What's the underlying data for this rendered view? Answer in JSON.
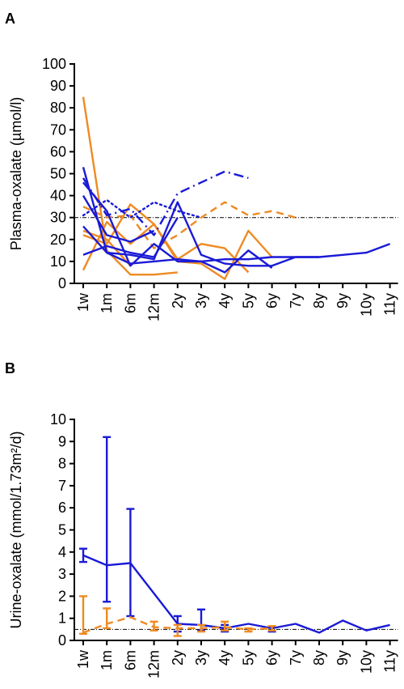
{
  "chart_data": [
    {
      "panel": "A",
      "type": "line",
      "ylabel": "Plasma-oxalate (µmol/l)",
      "xlabel": "",
      "categories": [
        "1w",
        "1m",
        "6m",
        "12m",
        "2y",
        "3y",
        "4y",
        "5y",
        "6y",
        "7y",
        "8y",
        "9y",
        "10y",
        "11y"
      ],
      "ylim": [
        0,
        100
      ],
      "yticks": [
        0,
        10,
        20,
        30,
        40,
        50,
        60,
        70,
        80,
        90,
        100
      ],
      "reference_line": 30,
      "colors": {
        "blue": "#1a1ad6",
        "orange": "#ee8a22"
      },
      "series": [
        {
          "color": "orange",
          "style": "solid",
          "x": [
            "1w",
            "1m",
            "6m",
            "12m",
            "2y"
          ],
          "y": [
            85,
            15,
            4,
            4,
            5
          ]
        },
        {
          "color": "orange",
          "style": "solid",
          "x": [
            "1w",
            "1m",
            "6m",
            "12m",
            "2y",
            "3y",
            "4y",
            "5y"
          ],
          "y": [
            22,
            18,
            36,
            27,
            11,
            18,
            16,
            5
          ]
        },
        {
          "color": "orange",
          "style": "solid",
          "x": [
            "1w",
            "1m",
            "6m",
            "12m",
            "2y",
            "3y",
            "4y",
            "5y",
            "6y"
          ],
          "y": [
            6,
            28,
            18,
            27,
            10,
            9,
            2,
            24,
            12
          ]
        },
        {
          "color": "orange",
          "style": "solid",
          "x": [
            "1w",
            "1m",
            "6m"
          ],
          "y": [
            24,
            20,
            8
          ]
        },
        {
          "color": "orange",
          "style": "dashed",
          "x": [
            "1w",
            "1m",
            "6m",
            "12m",
            "2y",
            "3y",
            "4y",
            "5y",
            "6y",
            "7y"
          ],
          "y": [
            35,
            30,
            31,
            16,
            22,
            30,
            37,
            31,
            33,
            30
          ]
        },
        {
          "color": "blue",
          "style": "solid",
          "x": [
            "1w",
            "1m",
            "6m",
            "12m",
            "2y",
            "3y",
            "4y",
            "5y",
            "6y"
          ],
          "y": [
            53,
            14,
            9,
            10,
            11,
            10,
            5,
            15,
            7
          ]
        },
        {
          "color": "blue",
          "style": "solid",
          "x": [
            "1w",
            "1m",
            "6m",
            "12m",
            "2y",
            "3y",
            "4y",
            "5y",
            "6y",
            "7y",
            "8y",
            "9y",
            "10y",
            "11y"
          ],
          "y": [
            46,
            33,
            8,
            18,
            10,
            10,
            11,
            11,
            12,
            12,
            12,
            13,
            14,
            18
          ]
        },
        {
          "color": "blue",
          "style": "solid",
          "x": [
            "1w",
            "1m",
            "6m",
            "12m",
            "2y",
            "3y",
            "4y",
            "5y",
            "6y",
            "7y",
            "8y"
          ],
          "y": [
            26,
            14,
            13,
            11,
            37,
            13,
            9,
            8,
            8,
            12,
            12
          ]
        },
        {
          "color": "blue",
          "style": "solid",
          "x": [
            "1w",
            "1m",
            "6m",
            "12m",
            "2y"
          ],
          "y": [
            13,
            17,
            14,
            12,
            30
          ]
        },
        {
          "color": "blue",
          "style": "solid",
          "x": [
            "1w",
            "1m",
            "6m",
            "12m"
          ],
          "y": [
            40,
            22,
            19,
            24
          ]
        },
        {
          "color": "blue",
          "style": "dotted",
          "x": [
            "1w",
            "1m",
            "6m",
            "12m",
            "2y",
            "3y"
          ],
          "y": [
            31,
            38,
            30,
            37,
            33,
            30
          ]
        },
        {
          "color": "blue",
          "style": "dashdot",
          "x": [
            "1w",
            "1m",
            "6m",
            "12m",
            "2y",
            "3y",
            "4y",
            "5y"
          ],
          "y": [
            48,
            31,
            34,
            22,
            41,
            46,
            51,
            48
          ]
        }
      ]
    },
    {
      "panel": "B",
      "type": "line",
      "ylabel": "Urine-oxalate (mmol/1.73m²/d)",
      "xlabel": "",
      "categories": [
        "1w",
        "1m",
        "6m",
        "12m",
        "2y",
        "3y",
        "4y",
        "5y",
        "6y",
        "7y",
        "8y",
        "9y",
        "10y",
        "11y"
      ],
      "ylim": [
        0,
        10
      ],
      "yticks": [
        0,
        1,
        2,
        3,
        4,
        5,
        6,
        7,
        8,
        9,
        10
      ],
      "reference_line": 0.5,
      "colors": {
        "blue": "#1a1ad6",
        "orange": "#ee8a22"
      },
      "series": [
        {
          "color": "blue",
          "style": "solid",
          "x": [
            "1w",
            "1m",
            "6m",
            "2y",
            "3y",
            "4y",
            "5y",
            "6y",
            "7y",
            "8y",
            "9y",
            "10y",
            "11y"
          ],
          "y": [
            3.85,
            3.4,
            3.5,
            0.75,
            0.7,
            0.55,
            0.75,
            0.55,
            0.75,
            0.35,
            0.9,
            0.45,
            0.7
          ],
          "err_low": [
            3.55,
            1.75,
            1.1,
            0.4,
            0.45,
            0.4,
            0.55,
            0.4,
            null,
            null,
            null,
            null,
            null
          ],
          "err_high": [
            4.15,
            9.2,
            5.95,
            1.1,
            1.4,
            0.7,
            null,
            0.6,
            null,
            null,
            null,
            null,
            null
          ]
        },
        {
          "color": "orange",
          "style": "dashed",
          "x": [
            "1w",
            "1m",
            "6m",
            "12m",
            "2y",
            "3y",
            "4y",
            "5y",
            "6y"
          ],
          "y": [
            0.35,
            0.75,
            1.05,
            0.6,
            0.55,
            0.55,
            0.6,
            0.5,
            0.55
          ],
          "err_low": [
            0.3,
            0.55,
            null,
            0.45,
            0.2,
            0.4,
            0.45,
            0.4,
            0.45
          ],
          "err_high": [
            2.0,
            1.45,
            null,
            0.85,
            0.7,
            0.7,
            0.85,
            0.55,
            0.65
          ]
        }
      ]
    }
  ]
}
